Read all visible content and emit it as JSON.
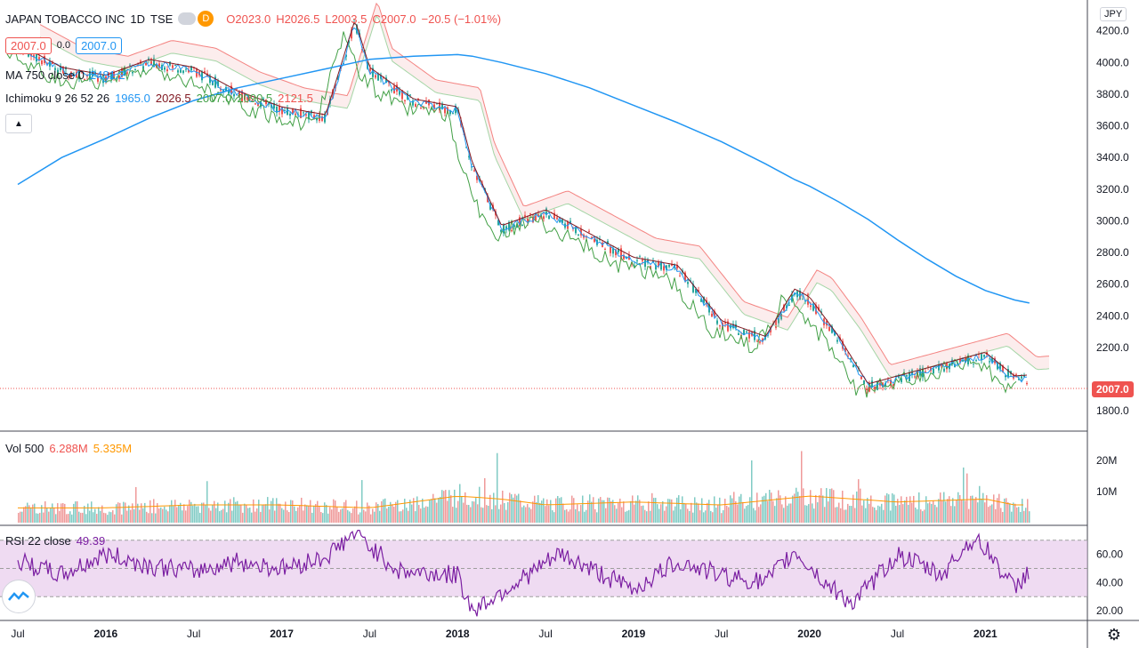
{
  "header": {
    "symbol": "JAPAN TOBACCO INC",
    "interval": "1D",
    "exchange": "TSE",
    "currency": "JPY",
    "d_icon_label": "D",
    "ohlc": {
      "o_label": "O",
      "o": "2023.0",
      "h_label": "H",
      "h": "2026.5",
      "l_label": "L",
      "l": "2003.5",
      "c_label": "C",
      "c": "2007.0",
      "change": "−20.5 (−1.01%)"
    },
    "bid": "2007.0",
    "spread": "0.0",
    "ask": "2007.0"
  },
  "indicators": {
    "ma": {
      "label": "MA 750 close 0",
      "value": "2481.2",
      "color": "#2196f3"
    },
    "ichimoku": {
      "label": "Ichimoku 9 26 52 26",
      "values": [
        "1965.0",
        "2026.5",
        "2007.0",
        "2090.5",
        "2121.5"
      ],
      "colors": [
        "#2196f3",
        "#801922",
        "#43a047",
        "#a5d6a7",
        "#ef9a9a"
      ]
    },
    "volume": {
      "label": "Vol 500",
      "value": "6.288M",
      "ma_value": "5.335M"
    },
    "rsi": {
      "label": "RSI 22 close",
      "value": "49.39",
      "color": "#7b1fa2"
    }
  },
  "price_axis": {
    "labels": [
      "4200.0",
      "4000.0",
      "3800.0",
      "3600.0",
      "3400.0",
      "3200.0",
      "3000.0",
      "2800.0",
      "2600.0",
      "2400.0",
      "2200.0",
      "1800.0"
    ],
    "last_price": "2007.0"
  },
  "volume_axis": {
    "labels": [
      "20M",
      "10M"
    ]
  },
  "rsi_axis": {
    "labels": [
      "60.00",
      "40.00",
      "20.00"
    ]
  },
  "time_axis": {
    "labels": [
      "Jul",
      "2016",
      "Jul",
      "2017",
      "Jul",
      "2018",
      "Jul",
      "2019",
      "Jul",
      "2020",
      "Jul",
      "2021"
    ]
  },
  "colors": {
    "up": "#26a69a",
    "down": "#ef5350",
    "ma750": "#2196f3",
    "rsi": "#7b1fa2",
    "rsi_band": "#e1bee7",
    "vol_ma": "#ff9800",
    "last_price": "#ef5350"
  },
  "chart_data": [
    {
      "type": "line",
      "title": "JAPAN TOBACCO INC · 1D · TSE",
      "ylabel": "",
      "ylim": [
        1700,
        4350
      ],
      "x": [
        "2015-07",
        "2015-10",
        "2016-01",
        "2016-04",
        "2016-07",
        "2016-10",
        "2017-01",
        "2017-04",
        "2017-06",
        "2017-07",
        "2017-10",
        "2018-01",
        "2018-02",
        "2018-04",
        "2018-07",
        "2018-10",
        "2019-01",
        "2019-04",
        "2019-07",
        "2019-10",
        "2019-12",
        "2020-01",
        "2020-03",
        "2020-05",
        "2020-07",
        "2020-09",
        "2020-11",
        "2021-01",
        "2021-03",
        "2021-04"
      ],
      "series": [
        {
          "name": "Close",
          "values": [
            4100,
            3950,
            3900,
            4000,
            3950,
            3800,
            3700,
            3650,
            4250,
            3950,
            3750,
            3700,
            3350,
            2950,
            3050,
            2900,
            2750,
            2700,
            2350,
            2250,
            2550,
            2500,
            2250,
            1950,
            2000,
            2050,
            2100,
            2150,
            2000,
            2007
          ]
        },
        {
          "name": "MA 750 close 0",
          "values": [
            3230,
            3400,
            3520,
            3650,
            3760,
            3840,
            3900,
            3960,
            4000,
            4020,
            4040,
            4050,
            4040,
            4000,
            3930,
            3840,
            3730,
            3620,
            3500,
            3360,
            3260,
            3220,
            3120,
            3010,
            2880,
            2760,
            2650,
            2560,
            2500,
            2481
          ]
        }
      ]
    },
    {
      "type": "bar",
      "title": "Vol 500",
      "ylim": [
        0,
        28
      ],
      "categories": [
        "2015-07",
        "2016-01",
        "2016-07",
        "2017-01",
        "2017-07",
        "2018-01",
        "2018-04",
        "2018-07",
        "2019-01",
        "2019-07",
        "2020-01",
        "2020-04",
        "2020-07",
        "2021-01",
        "2021-03"
      ],
      "values": [
        5,
        5,
        6,
        6,
        5,
        9,
        8,
        6,
        7,
        6,
        9,
        8,
        7,
        8,
        6
      ],
      "unit": "M"
    },
    {
      "type": "line",
      "title": "RSI 22 close",
      "ylim": [
        15,
        78
      ],
      "x": [
        "2015-07",
        "2015-10",
        "2016-01",
        "2016-04",
        "2016-07",
        "2016-10",
        "2017-01",
        "2017-04",
        "2017-06",
        "2017-09",
        "2018-01",
        "2018-02",
        "2018-05",
        "2018-08",
        "2018-10",
        "2019-01",
        "2019-04",
        "2019-07",
        "2019-10",
        "2019-12",
        "2020-02",
        "2020-04",
        "2020-07",
        "2020-10",
        "2020-12",
        "2021-01",
        "2021-03",
        "2021-04"
      ],
      "series": [
        {
          "name": "RSI",
          "values": [
            55,
            45,
            60,
            52,
            48,
            55,
            50,
            58,
            75,
            48,
            45,
            20,
            40,
            60,
            50,
            35,
            55,
            45,
            40,
            62,
            40,
            25,
            60,
            45,
            70,
            65,
            35,
            49.39
          ]
        }
      ],
      "bands": [
        30,
        70
      ]
    }
  ]
}
